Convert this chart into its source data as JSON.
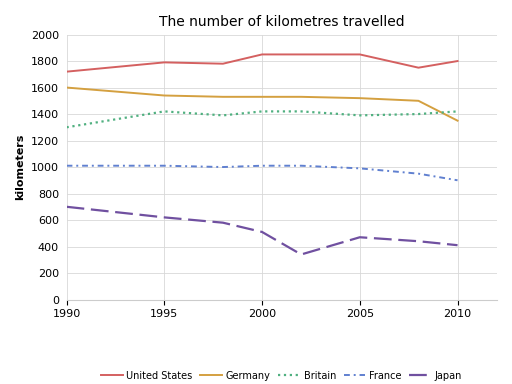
{
  "title": "The number of kilometres travelled",
  "ylabel": "kilometers",
  "xlim": [
    1990,
    2012
  ],
  "ylim": [
    0,
    2000
  ],
  "yticks": [
    0,
    200,
    400,
    600,
    800,
    1000,
    1200,
    1400,
    1600,
    1800,
    2000
  ],
  "xticks": [
    1990,
    1995,
    2000,
    2005,
    2010
  ],
  "years": [
    1990,
    1995,
    1998,
    2000,
    2002,
    2005,
    2008,
    2010
  ],
  "series": {
    "United States": {
      "values": [
        1720,
        1790,
        1780,
        1850,
        1850,
        1850,
        1750,
        1800
      ],
      "color": "#d46060"
    },
    "Germany": {
      "values": [
        1600,
        1540,
        1530,
        1530,
        1530,
        1520,
        1500,
        1350
      ],
      "color": "#d4a040"
    },
    "Britain": {
      "values": [
        1300,
        1420,
        1390,
        1420,
        1420,
        1390,
        1400,
        1420
      ],
      "color": "#50b080"
    },
    "France": {
      "values": [
        1010,
        1010,
        1000,
        1010,
        1010,
        990,
        950,
        900
      ],
      "color": "#6080d0"
    },
    "Japan": {
      "values": [
        700,
        620,
        580,
        510,
        340,
        470,
        440,
        410
      ],
      "color": "#7050a0"
    }
  },
  "legend_order": [
    "United States",
    "Germany",
    "Britain",
    "France",
    "Japan"
  ],
  "bg_color": "#ffffff"
}
